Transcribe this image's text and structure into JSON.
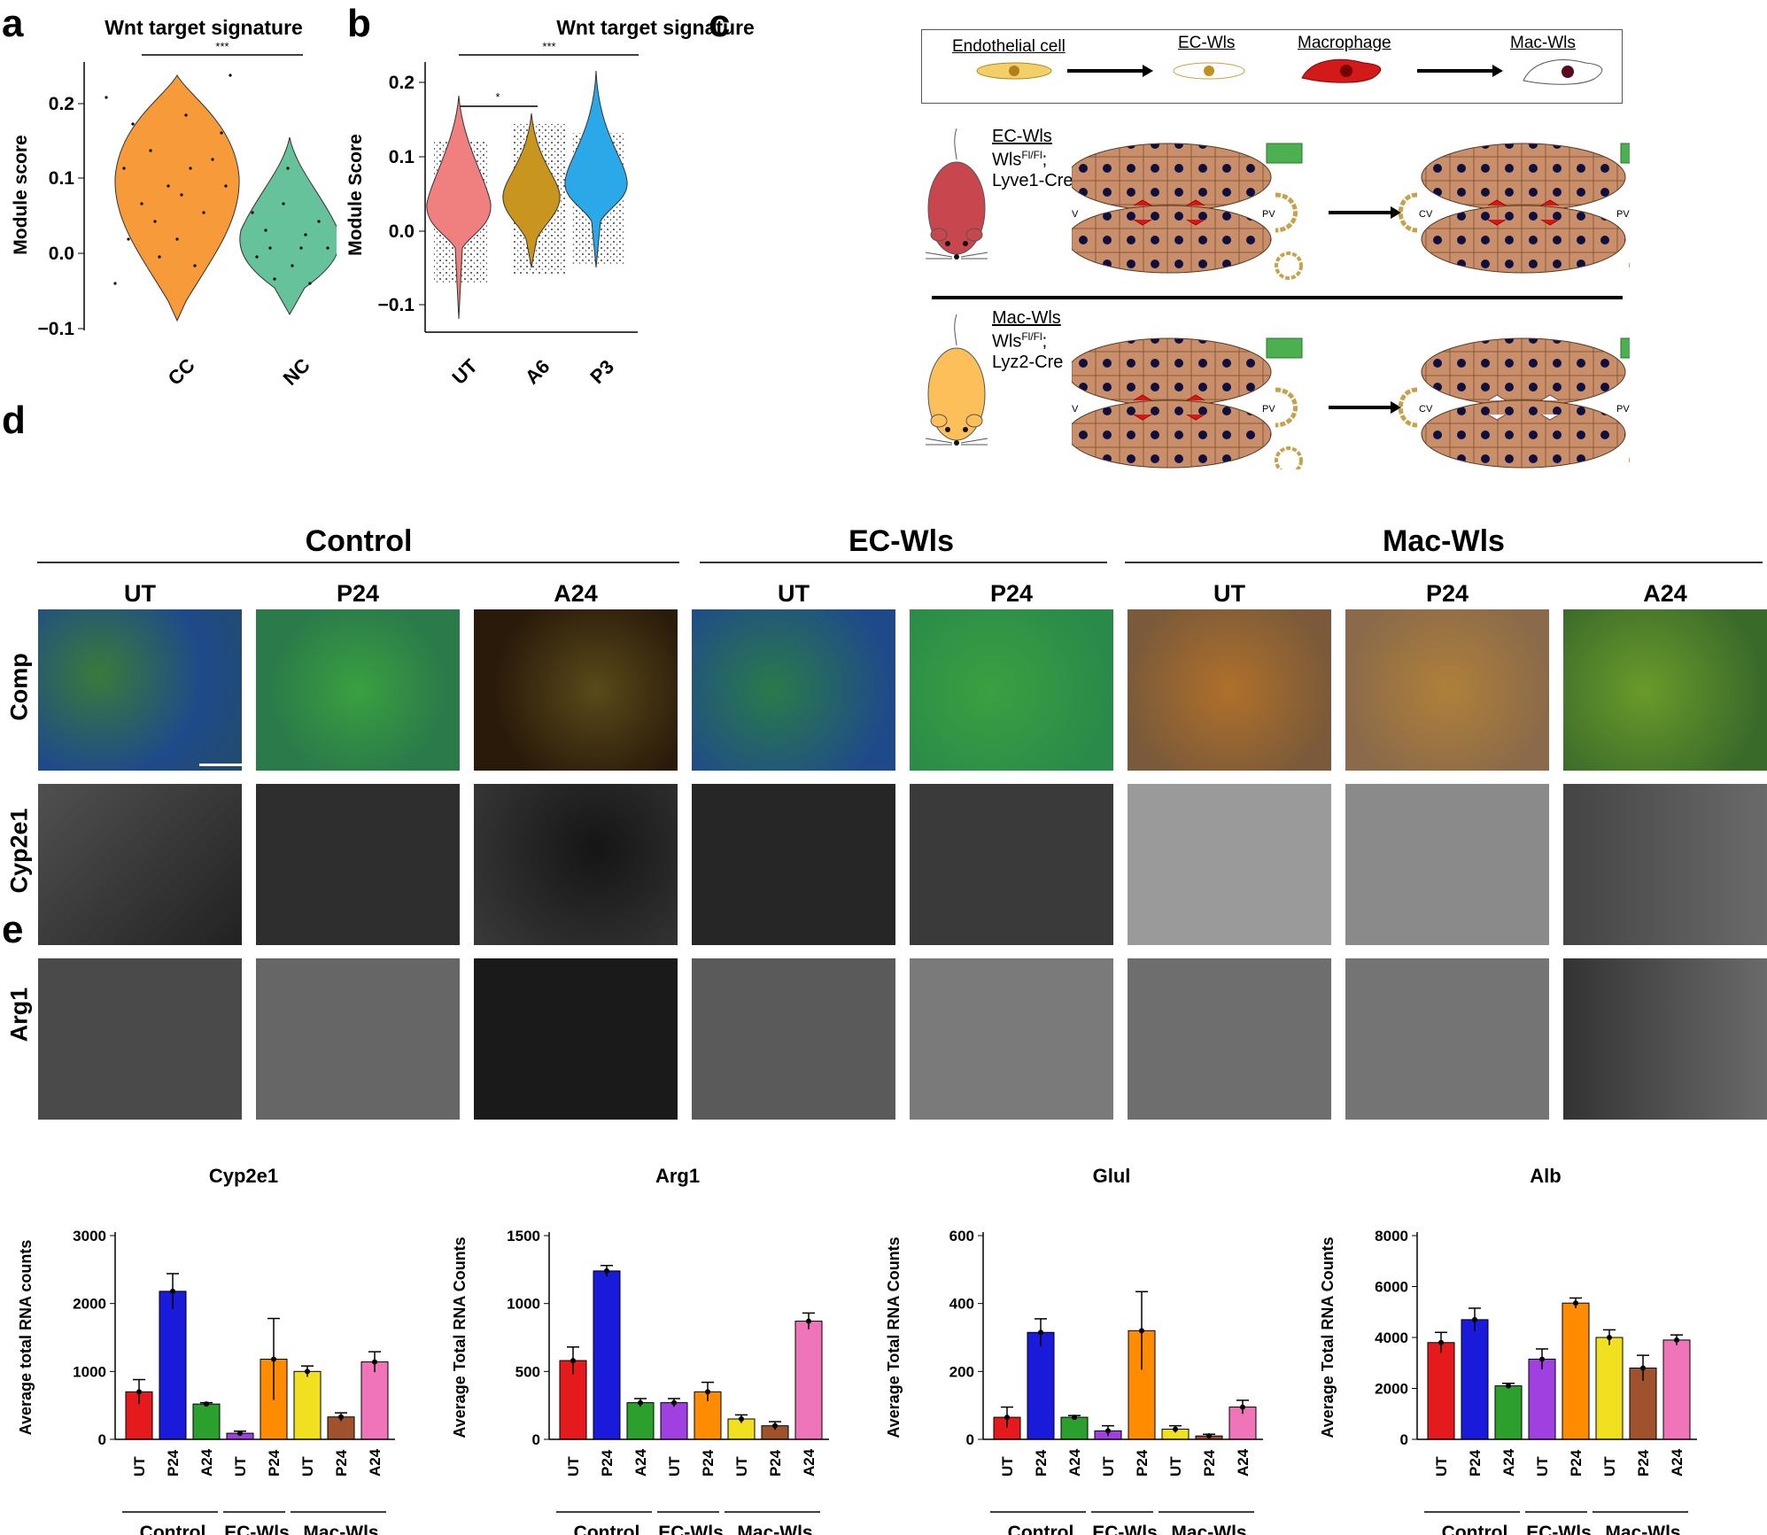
{
  "panel_labels": {
    "a": "a",
    "b": "b",
    "c": "c",
    "d": "d",
    "e": "e"
  },
  "panel_a": {
    "title": "Wnt target signature",
    "sig": "***",
    "ylabel": "Module score",
    "yticks": [
      "0.2",
      "0.1",
      "0.0",
      "−0.1"
    ],
    "categories": [
      "CC",
      "NC"
    ]
  },
  "panel_b": {
    "title": "Wnt target signature",
    "sig_top": "***",
    "sig_inner": "*",
    "ylabel": "Module Score",
    "yticks": [
      "0.2",
      "0.1",
      "0.0",
      "−0.1"
    ],
    "categories": [
      "UT",
      "A6",
      "P3"
    ]
  },
  "panel_c": {
    "legend": {
      "endothelial": "Endothelial cell",
      "ecwls": "EC-Wls",
      "macrophage": "Macrophage",
      "macwls": "Mac-Wls"
    },
    "row1": {
      "name": "EC-Wls",
      "geno_base": "Wls",
      "geno_sup": "Fl/Fl",
      "geno_tail": ";",
      "cre": "Lyve1-Cre"
    },
    "row2": {
      "name": "Mac-Wls",
      "geno_base": "Wls",
      "geno_sup": "Fl/Fl",
      "geno_tail": ";",
      "cre": "Lyz2-Cre"
    },
    "cv": "CV",
    "pv": "PV"
  },
  "panel_d": {
    "groups": [
      "Control",
      "EC-Wls",
      "Mac-Wls"
    ],
    "columns": [
      "UT",
      "P24",
      "A24",
      "UT",
      "P24",
      "UT",
      "P24",
      "A24"
    ],
    "rows": [
      "Comp",
      "Cyp2e1",
      "Arg1"
    ]
  },
  "chart_data": [
    {
      "type": "violin",
      "title": "Wnt target signature",
      "ylabel": "Module score",
      "categories": [
        "CC",
        "NC"
      ],
      "ylim": [
        -0.1,
        0.24
      ],
      "medians": [
        0.1,
        0.02
      ],
      "significance": [
        {
          "between": [
            "CC",
            "NC"
          ],
          "label": "***"
        }
      ]
    },
    {
      "type": "violin",
      "title": "Wnt target signature",
      "ylabel": "Module Score",
      "categories": [
        "UT",
        "A6",
        "P3"
      ],
      "ylim": [
        -0.12,
        0.22
      ],
      "medians": [
        0.02,
        0.04,
        0.06
      ],
      "significance": [
        {
          "between": [
            "UT",
            "A6"
          ],
          "label": "*"
        },
        {
          "between": [
            "UT",
            "P3"
          ],
          "label": "***"
        }
      ]
    },
    {
      "type": "bar",
      "title": "Cyp2e1",
      "ylabel": "Average total RNA counts",
      "ylim": [
        0,
        3000
      ],
      "yticks": [
        "0",
        "1000",
        "2000",
        "3000"
      ],
      "categories": [
        "UT",
        "P24",
        "A24",
        "UT",
        "P24",
        "UT",
        "P24",
        "A24"
      ],
      "groups": [
        "Control",
        "EC-Wls",
        "Mac-Wls"
      ],
      "values": [
        700,
        2180,
        520,
        90,
        1180,
        1000,
        330,
        1140
      ],
      "errors": [
        180,
        260,
        20,
        30,
        600,
        80,
        60,
        150
      ]
    },
    {
      "type": "bar",
      "title": "Arg1",
      "ylabel": "Average Total RNA Counts",
      "ylim": [
        0,
        1500
      ],
      "yticks": [
        "0",
        "500",
        "1000",
        "1500"
      ],
      "categories": [
        "UT",
        "P24",
        "A24",
        "UT",
        "P24",
        "UT",
        "P24",
        "A24"
      ],
      "groups": [
        "Control",
        "EC-Wls",
        "Mac-Wls"
      ],
      "values": [
        580,
        1240,
        270,
        270,
        350,
        150,
        100,
        870
      ],
      "errors": [
        100,
        40,
        30,
        30,
        70,
        30,
        30,
        60
      ]
    },
    {
      "type": "bar",
      "title": "Glul",
      "ylabel": "Average Total RNA Counts",
      "ylim": [
        0,
        600
      ],
      "yticks": [
        "0",
        "200",
        "400",
        "600"
      ],
      "categories": [
        "UT",
        "P24",
        "A24",
        "UT",
        "P24",
        "UT",
        "P24",
        "A24"
      ],
      "groups": [
        "Control",
        "EC-Wls",
        "Mac-Wls"
      ],
      "values": [
        65,
        315,
        65,
        25,
        320,
        30,
        10,
        95
      ],
      "errors": [
        30,
        40,
        5,
        15,
        115,
        10,
        5,
        20
      ]
    },
    {
      "type": "bar",
      "title": "Alb",
      "ylabel": "Average Total RNA Counts",
      "ylim": [
        0,
        8000
      ],
      "yticks": [
        "0",
        "2000",
        "4000",
        "6000",
        "8000"
      ],
      "categories": [
        "UT",
        "P24",
        "A24",
        "UT",
        "P24",
        "UT",
        "P24",
        "A24"
      ],
      "groups": [
        "Control",
        "EC-Wls",
        "Mac-Wls"
      ],
      "values": [
        3800,
        4700,
        2100,
        3150,
        5350,
        4000,
        2800,
        3900
      ],
      "errors": [
        400,
        450,
        100,
        400,
        200,
        300,
        500,
        200
      ]
    }
  ],
  "bar_colors": [
    "#e41a1c",
    "#1a1adb",
    "#2ca02c",
    "#a040e0",
    "#ff8c00",
    "#f0e020",
    "#a0522d",
    "#f075b8"
  ],
  "colors": {
    "orange": "#f79a3a",
    "teal": "#66c29a",
    "salmon": "#f08080",
    "gold": "#c8961e",
    "sky": "#2aa8e8"
  }
}
